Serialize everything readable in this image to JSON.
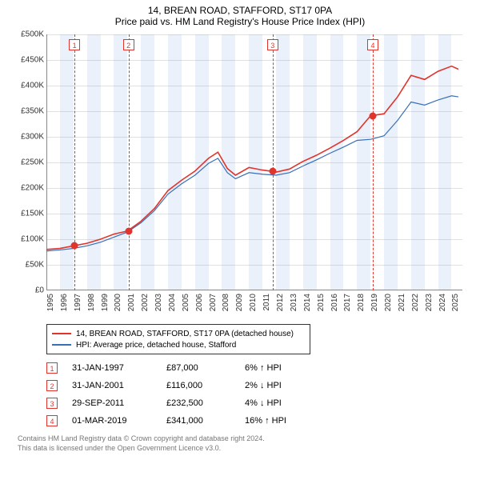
{
  "title": "14, BREAN ROAD, STAFFORD, ST17 0PA",
  "subtitle": "Price paid vs. HM Land Registry's House Price Index (HPI)",
  "chart": {
    "type": "line",
    "x_range": [
      1995,
      2025.8
    ],
    "y_range": [
      0,
      500000
    ],
    "y_ticks": [
      0,
      50000,
      100000,
      150000,
      200000,
      250000,
      300000,
      350000,
      400000,
      450000,
      500000
    ],
    "y_tick_labels": [
      "£0",
      "£50K",
      "£100K",
      "£150K",
      "£200K",
      "£250K",
      "£300K",
      "£350K",
      "£400K",
      "£450K",
      "£500K"
    ],
    "x_ticks": [
      1995,
      1996,
      1997,
      1998,
      1999,
      2000,
      2001,
      2002,
      2003,
      2004,
      2005,
      2006,
      2007,
      2008,
      2009,
      2010,
      2011,
      2012,
      2013,
      2014,
      2015,
      2016,
      2017,
      2018,
      2019,
      2020,
      2021,
      2022,
      2023,
      2024,
      2025
    ],
    "band_color": "#eaf1fa",
    "grid_color": "#888888",
    "background_color": "#ffffff",
    "series": [
      {
        "name": "property",
        "label": "14, BREAN ROAD, STAFFORD, ST17 0PA (detached house)",
        "color": "#e0342c",
        "width": 1.6,
        "points": [
          [
            1995,
            80000
          ],
          [
            1996,
            82000
          ],
          [
            1997,
            87000
          ],
          [
            1998,
            92000
          ],
          [
            1999,
            100000
          ],
          [
            2000,
            110000
          ],
          [
            2001,
            116000
          ],
          [
            2002,
            135000
          ],
          [
            2003,
            160000
          ],
          [
            2004,
            195000
          ],
          [
            2005,
            215000
          ],
          [
            2006,
            233000
          ],
          [
            2007,
            258000
          ],
          [
            2007.7,
            270000
          ],
          [
            2008.4,
            238000
          ],
          [
            2009,
            225000
          ],
          [
            2010,
            240000
          ],
          [
            2011,
            235000
          ],
          [
            2011.7,
            232500
          ],
          [
            2012,
            231000
          ],
          [
            2013,
            237000
          ],
          [
            2014,
            252000
          ],
          [
            2015,
            264000
          ],
          [
            2016,
            278000
          ],
          [
            2017,
            293000
          ],
          [
            2018,
            310000
          ],
          [
            2019,
            341000
          ],
          [
            2020,
            345000
          ],
          [
            2021,
            378000
          ],
          [
            2022,
            420000
          ],
          [
            2023,
            412000
          ],
          [
            2024,
            428000
          ],
          [
            2025,
            438000
          ],
          [
            2025.5,
            432000
          ]
        ]
      },
      {
        "name": "hpi",
        "label": "HPI: Average price, detached house, Stafford",
        "color": "#3a6fb7",
        "width": 1.2,
        "points": [
          [
            1995,
            77000
          ],
          [
            1996,
            79000
          ],
          [
            1997,
            82000
          ],
          [
            1998,
            87000
          ],
          [
            1999,
            94000
          ],
          [
            2000,
            104000
          ],
          [
            2001,
            114000
          ],
          [
            2002,
            132000
          ],
          [
            2003,
            156000
          ],
          [
            2004,
            188000
          ],
          [
            2005,
            208000
          ],
          [
            2006,
            225000
          ],
          [
            2007,
            248000
          ],
          [
            2007.7,
            258000
          ],
          [
            2008.4,
            230000
          ],
          [
            2009,
            218000
          ],
          [
            2010,
            230000
          ],
          [
            2011,
            227000
          ],
          [
            2012,
            225000
          ],
          [
            2013,
            230000
          ],
          [
            2014,
            243000
          ],
          [
            2015,
            255000
          ],
          [
            2016,
            268000
          ],
          [
            2017,
            280000
          ],
          [
            2018,
            293000
          ],
          [
            2019,
            295000
          ],
          [
            2020,
            302000
          ],
          [
            2021,
            332000
          ],
          [
            2022,
            368000
          ],
          [
            2023,
            362000
          ],
          [
            2024,
            372000
          ],
          [
            2025,
            380000
          ],
          [
            2025.5,
            378000
          ]
        ]
      }
    ],
    "sale_markers": [
      {
        "n": "1",
        "x": 1997.08,
        "y": 87000
      },
      {
        "n": "2",
        "x": 2001.08,
        "y": 116000
      },
      {
        "n": "3",
        "x": 2011.75,
        "y": 232500
      },
      {
        "n": "4",
        "x": 2019.17,
        "y": 341000
      }
    ]
  },
  "legend": {
    "items": [
      {
        "color": "#e0342c",
        "label": "14, BREAN ROAD, STAFFORD, ST17 0PA (detached house)"
      },
      {
        "color": "#3a6fb7",
        "label": "HPI: Average price, detached house, Stafford"
      }
    ]
  },
  "sales": [
    {
      "n": "1",
      "date": "31-JAN-1997",
      "price": "£87,000",
      "delta": "6%",
      "dir": "up",
      "suffix": "HPI"
    },
    {
      "n": "2",
      "date": "31-JAN-2001",
      "price": "£116,000",
      "delta": "2%",
      "dir": "down",
      "suffix": "HPI"
    },
    {
      "n": "3",
      "date": "29-SEP-2011",
      "price": "£232,500",
      "delta": "4%",
      "dir": "down",
      "suffix": "HPI"
    },
    {
      "n": "4",
      "date": "01-MAR-2019",
      "price": "£341,000",
      "delta": "16%",
      "dir": "up",
      "suffix": "HPI"
    }
  ],
  "footer": {
    "l1": "Contains HM Land Registry data © Crown copyright and database right 2024.",
    "l2": "This data is licensed under the Open Government Licence v3.0."
  }
}
